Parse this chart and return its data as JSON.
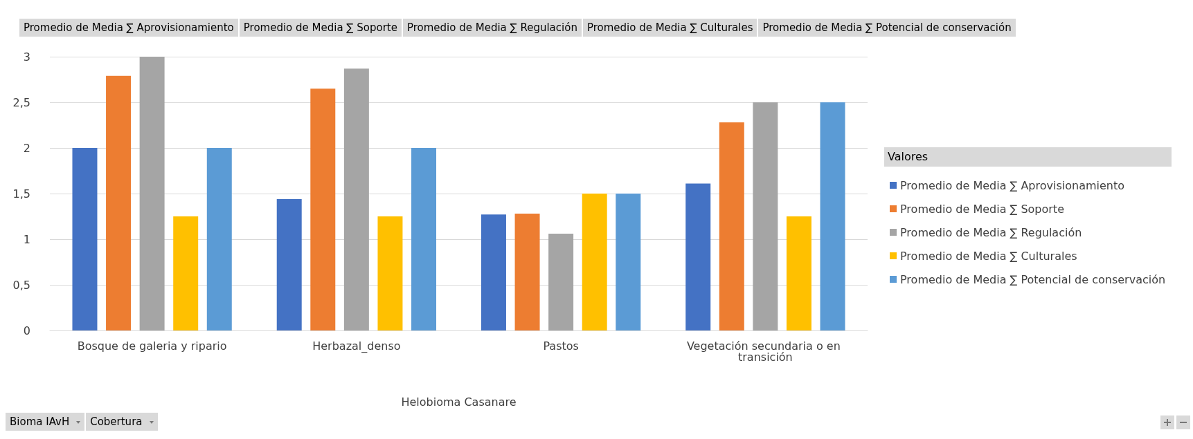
{
  "chart_data": {
    "type": "bar",
    "categories": [
      "Bosque de galeria y ripario",
      "Herbazal_denso",
      "Pastos",
      "Vegetación secundaria o en transición"
    ],
    "xlabel": "Helobioma Casanare",
    "legend_title": "Valores",
    "series": [
      {
        "name": "Promedio de Media ∑ Aprovisionamiento",
        "color": "#4472c4",
        "values": [
          2,
          1.44,
          1.27,
          1.61
        ]
      },
      {
        "name": "Promedio de Media ∑ Soporte",
        "color": "#ed7d31",
        "values": [
          2.79,
          2.65,
          1.28,
          2.28
        ]
      },
      {
        "name": "Promedio de Media ∑ Regulación",
        "color": "#a5a5a5",
        "values": [
          3,
          2.87,
          1.06,
          2.5
        ]
      },
      {
        "name": "Promedio de Media ∑ Culturales",
        "color": "#ffc000",
        "values": [
          1.25,
          1.25,
          1.5,
          1.25
        ]
      },
      {
        "name": "Promedio de Media ∑ Potencial de conservación",
        "color": "#5b9bd5",
        "values": [
          2,
          2,
          1.5,
          2.5
        ]
      }
    ],
    "ylim": [
      0,
      3
    ],
    "yticks": [
      0,
      {
        "value": 0.5,
        "label": "0,5"
      },
      1,
      {
        "value": 1.5,
        "label": "1,5"
      },
      2,
      {
        "value": 2.5,
        "label": "2,5"
      },
      3
    ],
    "grid": "y",
    "legend": "right",
    "annotations": [
      "Bioma IAvH",
      "Cobertura"
    ]
  }
}
